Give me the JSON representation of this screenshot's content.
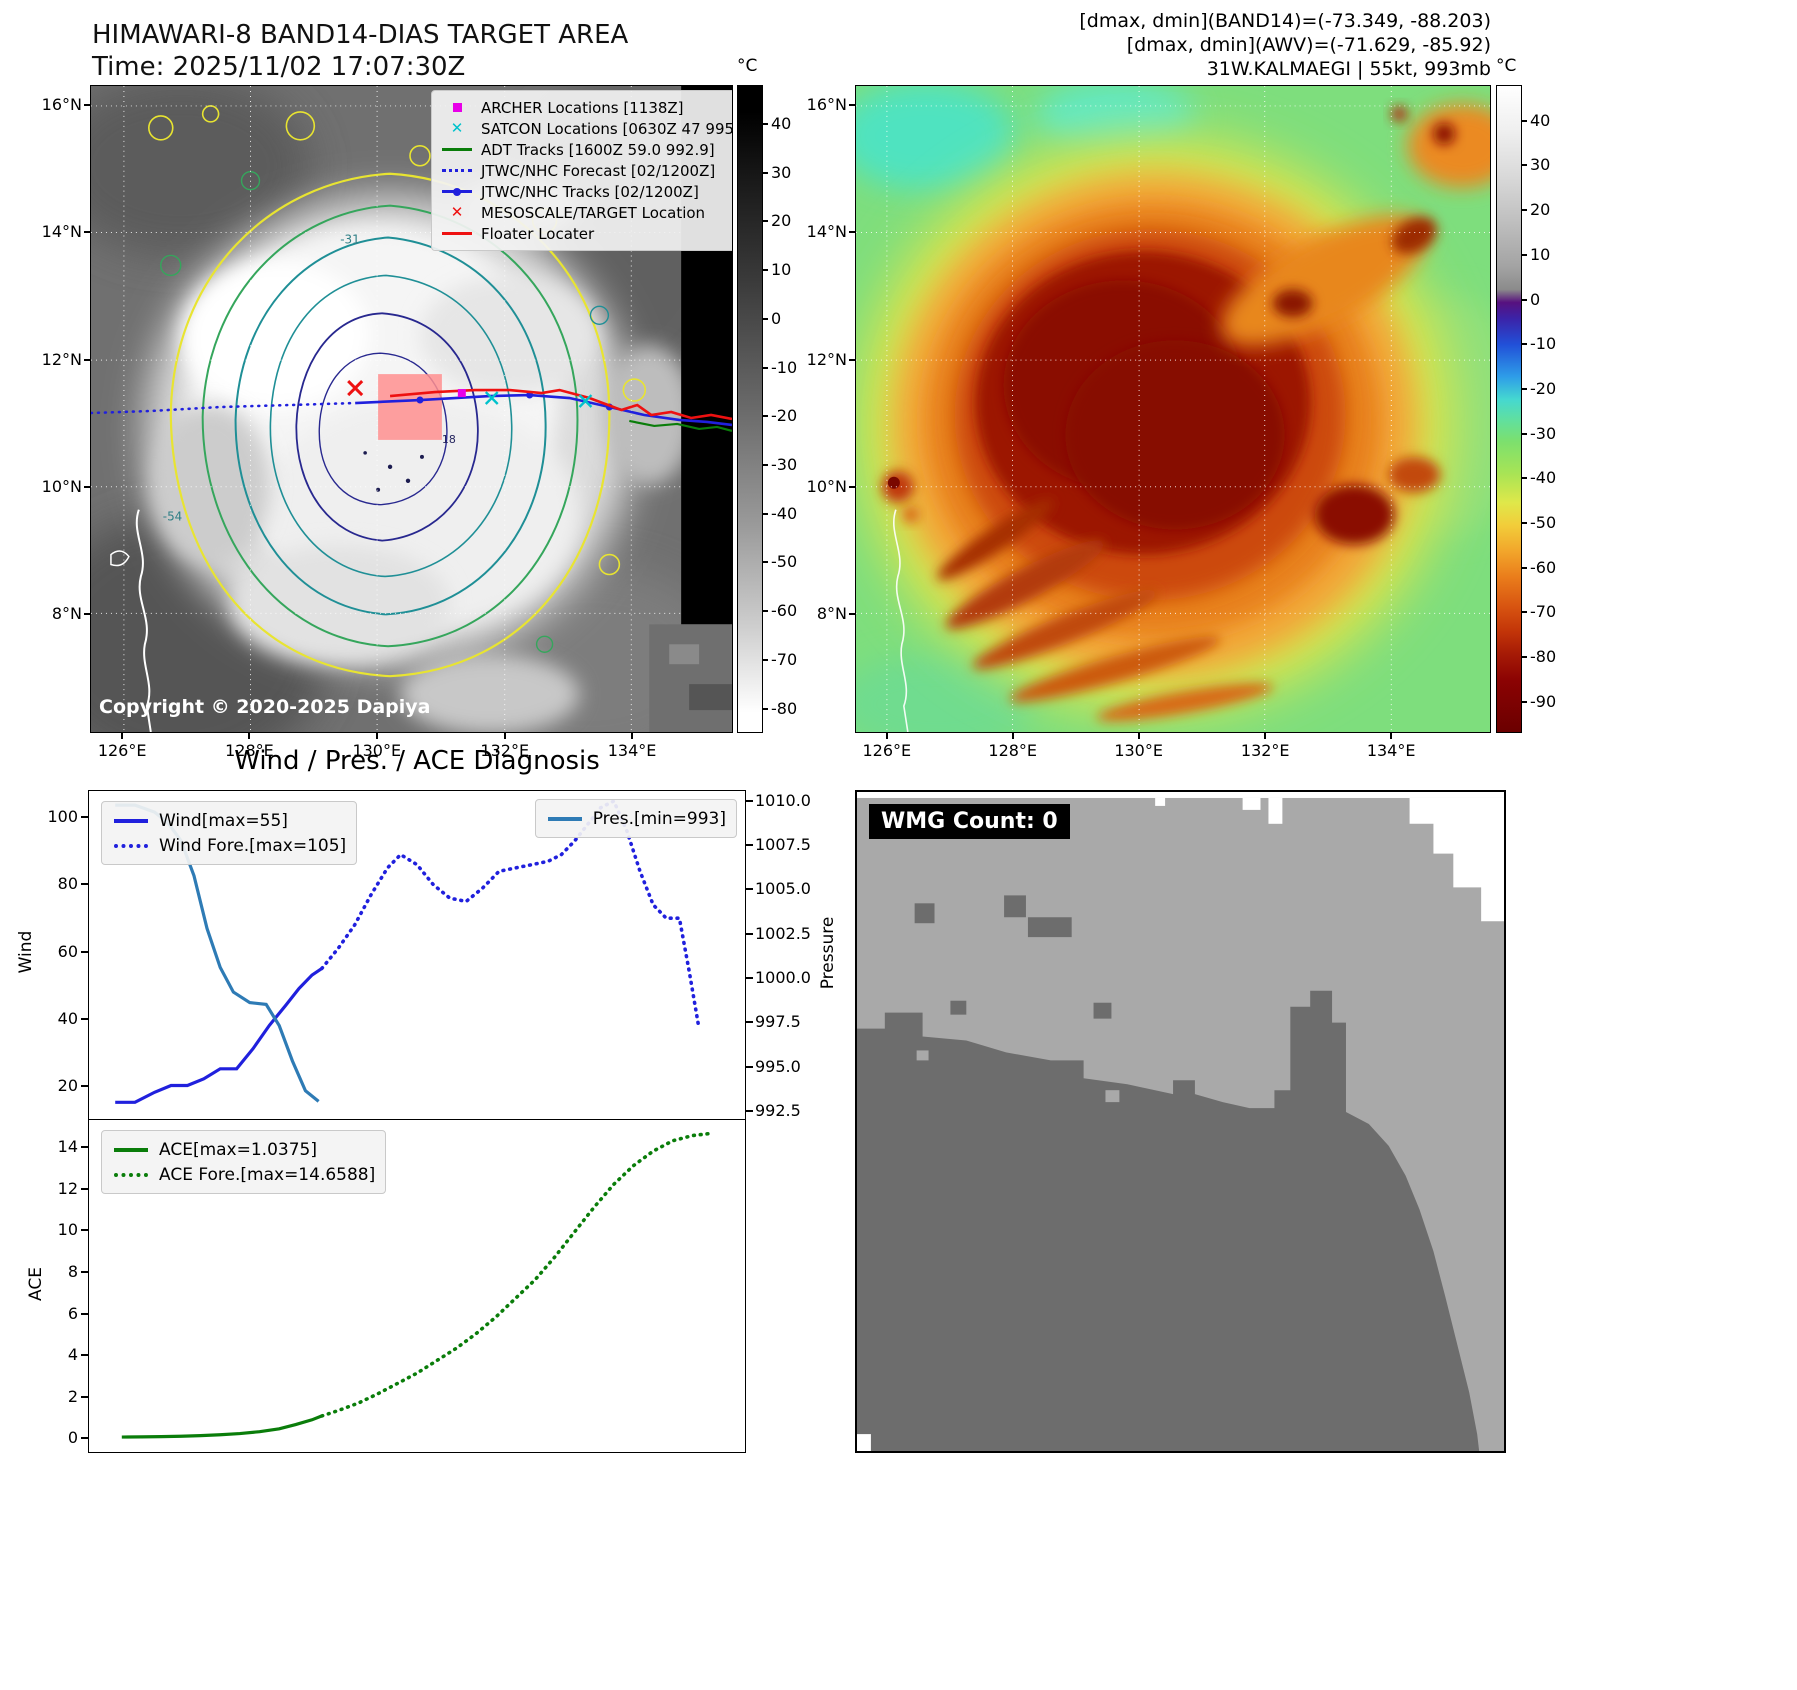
{
  "left_map": {
    "title_line1": "HIMAWARI-8 BAND14-DIAS TARGET AREA",
    "title_line2": "Time: 2025/11/02 17:07:30Z",
    "copyright": "Copyright © 2020-2025 Dapiya",
    "x_ticks": [
      "126°E",
      "128°E",
      "130°E",
      "132°E",
      "134°E"
    ],
    "y_ticks": [
      "16°N",
      "14°N",
      "12°N",
      "10°N",
      "8°N"
    ],
    "contour_labels": [
      "-31",
      "-54",
      "18"
    ],
    "colorbar": {
      "unit": "°C",
      "ticks": [
        40,
        30,
        20,
        10,
        0,
        -10,
        -20,
        -30,
        -40,
        -50,
        -60,
        -70,
        -80
      ],
      "range": [
        48,
        -85
      ]
    },
    "legend": [
      {
        "label": "ARCHER Locations [1138Z]",
        "marker": "archer-square",
        "color": "#e800e8"
      },
      {
        "label": "SATCON Locations [0630Z 47 995]",
        "marker": "satcon-x",
        "color": "#00c2cc"
      },
      {
        "label": "ADT Tracks [1600Z 59.0 992.9]",
        "marker": "adt-line",
        "color": "#0a7d0a"
      },
      {
        "label": "JTWC/NHC Forecast [02/1200Z]",
        "marker": "forecast-dotted-line",
        "color": "#2020dd"
      },
      {
        "label": "JTWC/NHC Tracks [02/1200Z]",
        "marker": "track-line-dot",
        "color": "#2020dd"
      },
      {
        "label": "MESOSCALE/TARGET Location",
        "marker": "target-x",
        "color": "#ee1111"
      },
      {
        "label": "Floater Locater",
        "marker": "floater-line",
        "color": "#ee1111"
      }
    ]
  },
  "right_map": {
    "header_line1": "[dmax, dmin](BAND14)=(-73.349, -88.203)",
    "header_line2": "[dmax, dmin](AWV)=(-71.629, -85.92)",
    "header_line3": "31W.KALMAEGI | 55kt, 993mb",
    "x_ticks": [
      "126°E",
      "128°E",
      "130°E",
      "132°E",
      "134°E"
    ],
    "y_ticks": [
      "16°N",
      "14°N",
      "12°N",
      "10°N",
      "8°N"
    ],
    "colorbar": {
      "unit": "°C",
      "ticks": [
        40,
        30,
        20,
        10,
        0,
        -10,
        -20,
        -30,
        -40,
        -50,
        -60,
        -70,
        -80,
        -90
      ],
      "range": [
        48,
        -97
      ]
    }
  },
  "wmg": {
    "label": "WMG Count: 0"
  },
  "charts_title": "Wind / Pres. / ACE Diagnosis",
  "chart_data": [
    {
      "type": "line",
      "title": "Wind / Pres. / ACE Diagnosis",
      "ylabel_left": "Wind",
      "ylabel_right": "Pressure",
      "ylim_left": [
        10,
        108
      ],
      "ylim_right": [
        992.0,
        1010.6
      ],
      "yticks_left": [
        20,
        40,
        60,
        80,
        100
      ],
      "yticks_right": [
        "992.5",
        "995.0",
        "997.5",
        "1000.0",
        "1002.5",
        "1005.0",
        "1007.5",
        "1010.0"
      ],
      "grid": false,
      "legend_position": "upper-left and upper-right",
      "series": [
        {
          "name": "Wind[max=55]",
          "axis": "left",
          "style": "solid",
          "color": "#2020dd",
          "x": [
            0.04,
            0.07,
            0.1,
            0.125,
            0.15,
            0.175,
            0.2,
            0.225,
            0.25,
            0.275,
            0.3,
            0.32,
            0.34,
            0.355
          ],
          "y": [
            15,
            15,
            18,
            20,
            20,
            22,
            25,
            25,
            31,
            38,
            44,
            49,
            53,
            55
          ]
        },
        {
          "name": "Wind Fore.[max=105]",
          "axis": "left",
          "style": "dotted",
          "color": "#2020dd",
          "x": [
            0.355,
            0.38,
            0.405,
            0.43,
            0.455,
            0.475,
            0.5,
            0.525,
            0.55,
            0.575,
            0.6,
            0.625,
            0.65,
            0.675,
            0.7,
            0.72,
            0.74,
            0.76,
            0.78,
            0.8,
            0.82,
            0.84,
            0.86,
            0.88,
            0.9,
            0.915,
            0.93
          ],
          "y": [
            55,
            61,
            68,
            77,
            85,
            89,
            86,
            80,
            76,
            75,
            79,
            84,
            85,
            86,
            87,
            89,
            93,
            98,
            103,
            105,
            96,
            84,
            74,
            70,
            70,
            54,
            37
          ]
        },
        {
          "name": "Pres.[min=993]",
          "axis": "right",
          "style": "solid",
          "color": "#2e7bb5",
          "x": [
            0.04,
            0.07,
            0.1,
            0.12,
            0.14,
            0.16,
            0.18,
            0.2,
            0.22,
            0.245,
            0.27,
            0.29,
            0.31,
            0.33,
            0.35
          ],
          "y": [
            1009.8,
            1009.8,
            1009.4,
            1008.8,
            1007.8,
            1005.8,
            1002.8,
            1000.6,
            999.2,
            998.6,
            998.5,
            997.3,
            995.3,
            993.6,
            993.0
          ]
        }
      ]
    },
    {
      "type": "line",
      "ylabel_left": "ACE",
      "ylim_left": [
        -0.7,
        15.3
      ],
      "yticks_left": [
        0,
        2,
        4,
        6,
        8,
        10,
        12,
        14
      ],
      "grid": false,
      "legend_position": "upper-left",
      "series": [
        {
          "name": "ACE[max=1.0375]",
          "axis": "left",
          "style": "solid",
          "color": "#0a7d0a",
          "x": [
            0.05,
            0.08,
            0.11,
            0.14,
            0.17,
            0.2,
            0.23,
            0.26,
            0.29,
            0.315,
            0.34,
            0.355
          ],
          "y": [
            0.02,
            0.03,
            0.04,
            0.06,
            0.09,
            0.13,
            0.19,
            0.28,
            0.42,
            0.62,
            0.85,
            1.04
          ]
        },
        {
          "name": "ACE Fore.[max=14.6588]",
          "axis": "left",
          "style": "dotted",
          "color": "#0a7d0a",
          "x": [
            0.355,
            0.38,
            0.41,
            0.44,
            0.47,
            0.5,
            0.53,
            0.56,
            0.59,
            0.62,
            0.65,
            0.68,
            0.71,
            0.74,
            0.77,
            0.8,
            0.83,
            0.86,
            0.89,
            0.92,
            0.95
          ],
          "y": [
            1.04,
            1.3,
            1.65,
            2.1,
            2.6,
            3.1,
            3.7,
            4.3,
            5.0,
            5.8,
            6.7,
            7.6,
            8.7,
            9.9,
            11.1,
            12.2,
            13.1,
            13.8,
            14.3,
            14.55,
            14.66
          ]
        }
      ]
    }
  ]
}
